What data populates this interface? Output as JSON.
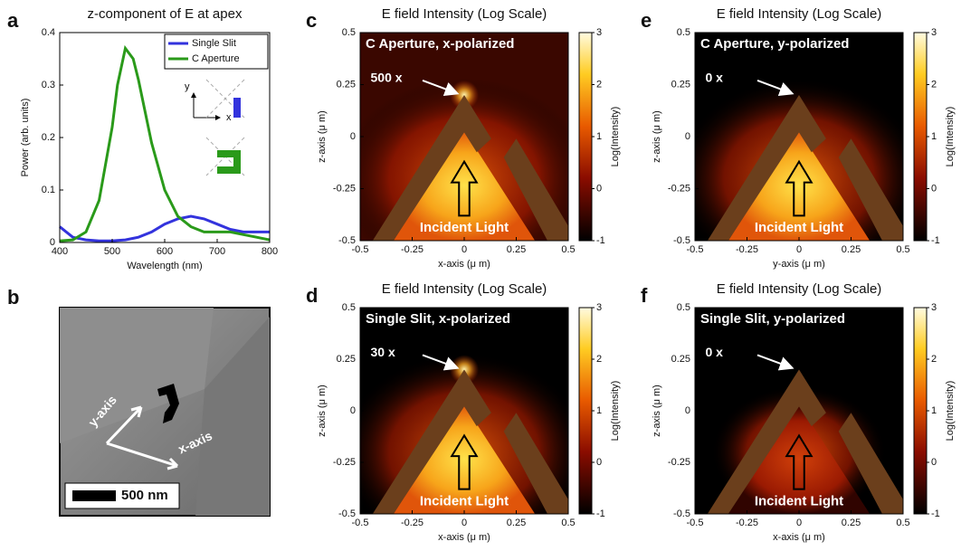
{
  "chart_data": [
    {
      "type": "line",
      "panel": "a",
      "title": "z-component of E at apex",
      "x_label": "Wavelength (nm)",
      "y_label": "Power (arb. units)",
      "x": [
        400,
        425,
        450,
        475,
        500,
        510,
        525,
        540,
        550,
        575,
        600,
        625,
        650,
        675,
        700,
        725,
        750,
        775,
        800
      ],
      "xlim": [
        400,
        800
      ],
      "xticks": [
        400,
        500,
        600,
        700,
        800
      ],
      "ylim": [
        0,
        0.4
      ],
      "yticks": [
        0,
        0.1,
        0.2,
        0.3,
        0.4
      ],
      "legend": "upper right",
      "series": [
        {
          "name": "Single Slit",
          "color": "#3333dd",
          "values": [
            0.03,
            0.01,
            0.005,
            0.003,
            0.003,
            0.004,
            0.005,
            0.008,
            0.01,
            0.02,
            0.035,
            0.045,
            0.05,
            0.045,
            0.035,
            0.025,
            0.02,
            0.02,
            0.02
          ]
        },
        {
          "name": "C Aperture",
          "color": "#2a9a1a",
          "values": [
            0.003,
            0.005,
            0.02,
            0.08,
            0.22,
            0.3,
            0.37,
            0.35,
            0.31,
            0.19,
            0.1,
            0.05,
            0.03,
            0.02,
            0.02,
            0.02,
            0.015,
            0.01,
            0.005
          ]
        }
      ],
      "inset_labels": [
        "y",
        "x"
      ]
    },
    {
      "type": "field-map",
      "panel": "c",
      "title": "E field Intensity (Log Scale)",
      "label": "C Aperture, x-polarized",
      "enhancement": "500 x",
      "annotation": "Incident Light",
      "x_label": "x-axis (μ m)",
      "y_label": "z-axis (μ m)",
      "xlim": [
        -0.5,
        0.5
      ],
      "xticks": [
        -0.5,
        -0.25,
        0,
        0.25,
        0.5
      ],
      "ylim": [
        -0.5,
        0.5
      ],
      "yticks": [
        -0.5,
        -0.25,
        0,
        0.25,
        0.5
      ],
      "colorbar_label": "Log(Intensity)",
      "clim": [
        -1,
        3
      ],
      "cticks": [
        -1,
        0,
        1,
        2,
        3
      ]
    },
    {
      "type": "field-map",
      "panel": "e",
      "title": "E field Intensity (Log Scale)",
      "label": "C Aperture, y-polarized",
      "enhancement": "0 x",
      "annotation": "Incident Light",
      "x_label": "y-axis (μ m)",
      "y_label": "z-axis (μ m)",
      "xlim": [
        -0.5,
        0.5
      ],
      "xticks": [
        -0.5,
        -0.25,
        0,
        0.25,
        0.5
      ],
      "ylim": [
        -0.5,
        0.5
      ],
      "yticks": [
        -0.5,
        -0.25,
        0,
        0.25,
        0.5
      ],
      "colorbar_label": "Log(Intensity)",
      "clim": [
        -1,
        3
      ],
      "cticks": [
        -1,
        0,
        1,
        2,
        3
      ]
    },
    {
      "type": "field-map",
      "panel": "d",
      "title": "E field Intensity (Log Scale)",
      "label": "Single Slit, x-polarized",
      "enhancement": "30 x",
      "annotation": "Incident Light",
      "x_label": "x-axis (μ m)",
      "y_label": "z-axis (μ m)",
      "xlim": [
        -0.5,
        0.5
      ],
      "xticks": [
        -0.5,
        -0.25,
        0,
        0.25,
        0.5
      ],
      "ylim": [
        -0.5,
        0.5
      ],
      "yticks": [
        -0.5,
        -0.25,
        0,
        0.25,
        0.5
      ],
      "colorbar_label": "Log(Intensity)",
      "clim": [
        -1,
        3
      ],
      "cticks": [
        -1,
        0,
        1,
        2,
        3
      ]
    },
    {
      "type": "field-map",
      "panel": "f",
      "title": "E field Intensity (Log Scale)",
      "label": "Single Slit, y-polarized",
      "enhancement": "0 x",
      "annotation": "Incident Light",
      "x_label": "x-axis (μ m)",
      "y_label": "z-axis (μ m)",
      "xlim": [
        -0.5,
        0.5
      ],
      "xticks": [
        -0.5,
        -0.25,
        0,
        0.25,
        0.5
      ],
      "ylim": [
        -0.5,
        0.5
      ],
      "yticks": [
        -0.5,
        -0.25,
        0,
        0.25,
        0.5
      ],
      "colorbar_label": "Log(Intensity)",
      "clim": [
        -1,
        3
      ],
      "cticks": [
        -1,
        0,
        1,
        2,
        3
      ]
    }
  ],
  "sem_image": {
    "panel": "b",
    "axis_labels": [
      "y-axis",
      "x-axis"
    ],
    "scale_bar": "500 nm"
  }
}
